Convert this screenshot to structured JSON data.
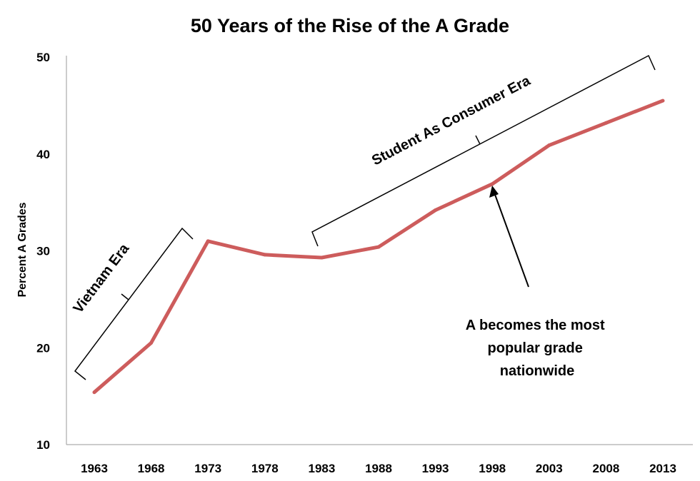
{
  "chart_data": {
    "type": "line",
    "title": "50 Years of the Rise of the A Grade",
    "xlabel": "",
    "ylabel": "Percent A Grades",
    "ylim": [
      10,
      50
    ],
    "yticks": [
      "10",
      "20",
      "30",
      "40",
      "50"
    ],
    "categories": [
      "1963",
      "1968",
      "1973",
      "1978",
      "1983",
      "1988",
      "1993",
      "1998",
      "2003",
      "2008",
      "2013"
    ],
    "series": [
      {
        "name": "Percent A Grades",
        "color": "#cd5c5c",
        "values": [
          15.4,
          20.5,
          31.0,
          29.6,
          29.3,
          30.4,
          34.2,
          36.9,
          40.9,
          43.2,
          45.5
        ]
      }
    ],
    "grid": false,
    "annotations": {
      "vietnam": "Vietnam Era",
      "consumer": "Student As Consumer Era",
      "popular": [
        "A becomes the most",
        "popular grade",
        "nationwide"
      ]
    }
  }
}
